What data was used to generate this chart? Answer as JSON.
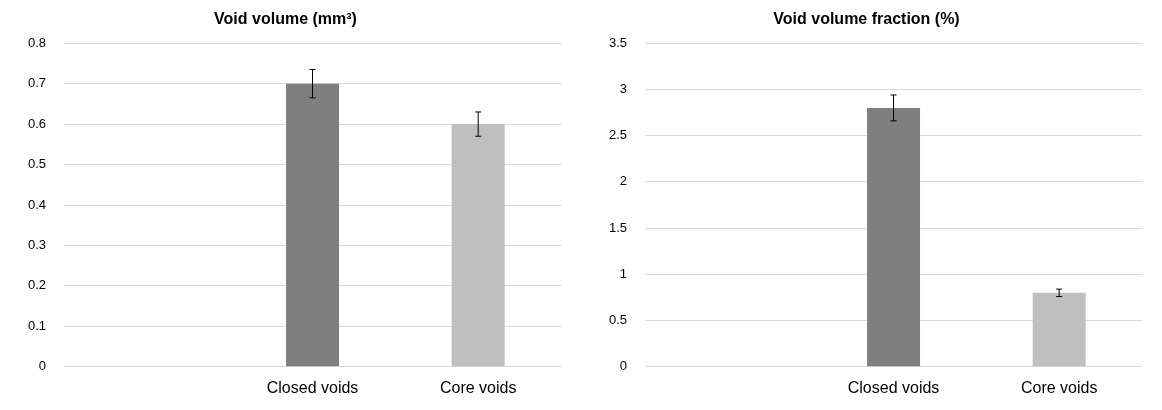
{
  "chart_data": [
    {
      "type": "bar",
      "title": "Void volume (mm³)",
      "categories": [
        null,
        "Closed voids",
        "Core voids"
      ],
      "values": [
        null,
        0.7,
        0.6
      ],
      "colors": [
        "#7f7f7f",
        "#7f7f7f",
        "#bfbfbf"
      ],
      "errors": [
        null,
        0.035,
        0.03
      ],
      "ylim": [
        0,
        0.8
      ],
      "yticks": [
        0,
        0.1,
        0.2,
        0.3,
        0.4,
        0.5,
        0.6,
        0.7,
        0.8
      ],
      "grid": "y",
      "legend": false
    },
    {
      "type": "bar",
      "title": "Void volume fraction (%)",
      "categories": [
        null,
        "Closed voids",
        "Core voids"
      ],
      "values": [
        null,
        2.8,
        0.8
      ],
      "colors": [
        "#7f7f7f",
        "#7f7f7f",
        "#bfbfbf"
      ],
      "errors": [
        null,
        0.14,
        0.04
      ],
      "ylim": [
        0,
        3.5
      ],
      "yticks": [
        0,
        0.5,
        1,
        1.5,
        2,
        2.5,
        3,
        3.5
      ],
      "grid": "y",
      "legend": false
    }
  ]
}
